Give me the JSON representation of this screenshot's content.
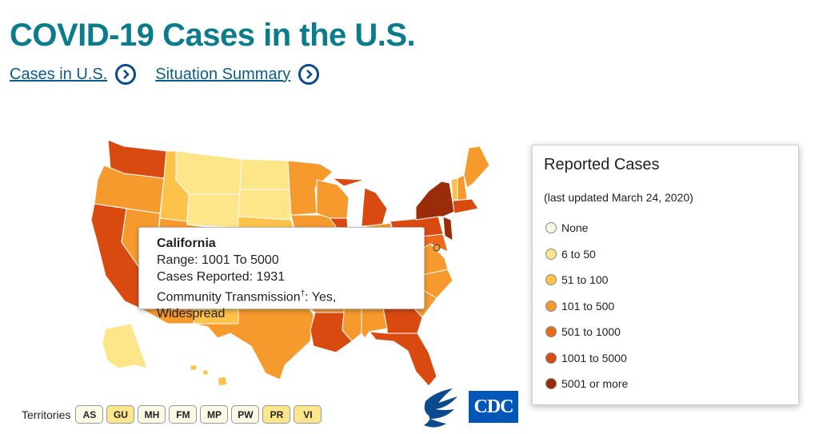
{
  "page": {
    "title": "COVID-19 Cases in the U.S."
  },
  "links": [
    {
      "label": "Cases in U.S."
    },
    {
      "label": "Situation Summary"
    }
  ],
  "tooltip": {
    "state": "California",
    "range": "Range: 1001 To 5000",
    "cases": "Cases Reported: 1931",
    "community_prefix": "Community Transmission",
    "dagger": "†",
    "community_suffix": ": Yes, Widespread"
  },
  "legend": {
    "title": "Reported Cases",
    "subtitle": "(last updated March 24, 2020)",
    "items": [
      {
        "label": "None",
        "color": "#fbf8e6"
      },
      {
        "label": "6 to 50",
        "color": "#fde68a"
      },
      {
        "label": "51 to 100",
        "color": "#fcc24a"
      },
      {
        "label": "101 to 500",
        "color": "#f79a2e"
      },
      {
        "label": "501 to 1000",
        "color": "#ec6a1c"
      },
      {
        "label": "1001 to 5000",
        "color": "#d94a10"
      },
      {
        "label": "5001 or more",
        "color": "#9a2c0a"
      }
    ]
  },
  "territories": {
    "label": "Territories",
    "items": [
      {
        "code": "AS",
        "color": "#fbf8e6"
      },
      {
        "code": "GU",
        "color": "#fde68a"
      },
      {
        "code": "MH",
        "color": "#fbf8e6"
      },
      {
        "code": "FM",
        "color": "#fbf8e6"
      },
      {
        "code": "MP",
        "color": "#fbf8e6"
      },
      {
        "code": "PW",
        "color": "#fbf8e6"
      },
      {
        "code": "PR",
        "color": "#fde68a"
      },
      {
        "code": "VI",
        "color": "#fde68a"
      }
    ]
  },
  "logos": {
    "cdc_text": "CDC"
  },
  "icons": [
    "chevron-right-circle-icon",
    "hhs-eagle-icon",
    "cdc-logo"
  ]
}
